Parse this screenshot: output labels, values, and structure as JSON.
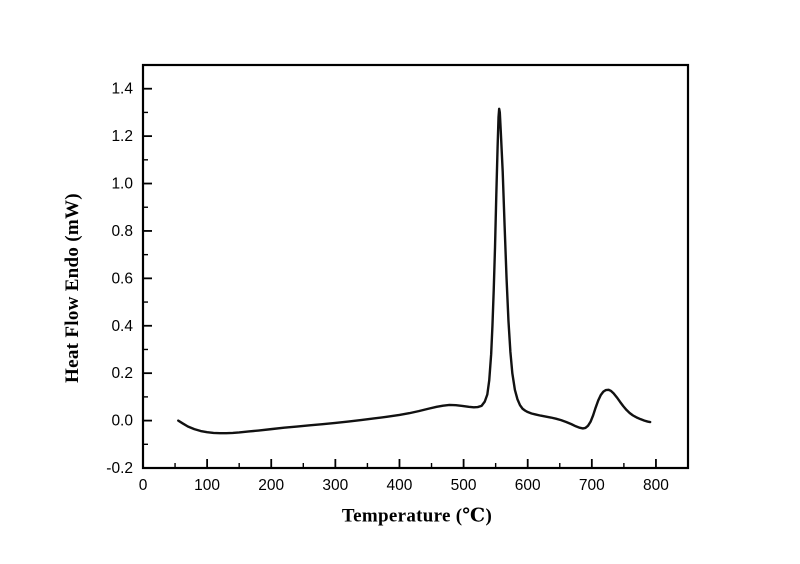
{
  "figure": {
    "background": "#ffffff"
  },
  "chart_data": {
    "type": "line",
    "title": "",
    "xlabel": "Temperature (℃)",
    "ylabel": "Heat Flow Endo (mW)",
    "xlim": [
      0,
      850
    ],
    "ylim": [
      -0.2,
      1.5
    ],
    "grid": false,
    "legend": "none",
    "axis_color": "#000000",
    "line_color": "#111111",
    "tick_label_color": "#000000",
    "xtick_values": [
      0,
      100,
      200,
      300,
      400,
      500,
      600,
      700,
      800
    ],
    "xtick_labels": [
      "0",
      "100",
      "200",
      "300",
      "400",
      "500",
      "600",
      "700",
      "800"
    ],
    "x_minor_step": 50,
    "ytick_values": [
      -0.2,
      0.0,
      0.2,
      0.4,
      0.6,
      0.8,
      1.0,
      1.2,
      1.4
    ],
    "ytick_labels": [
      "-0.2",
      "0.0",
      "0.2",
      "0.4",
      "0.6",
      "0.8",
      "1.0",
      "1.2",
      "1.4"
    ],
    "y_minor_step": 0.1,
    "series": [
      {
        "points": [
          [
            55,
            0.0
          ],
          [
            62,
            -0.012
          ],
          [
            70,
            -0.025
          ],
          [
            80,
            -0.036
          ],
          [
            90,
            -0.044
          ],
          [
            100,
            -0.049
          ],
          [
            110,
            -0.052
          ],
          [
            120,
            -0.053
          ],
          [
            130,
            -0.053
          ],
          [
            140,
            -0.052
          ],
          [
            150,
            -0.05
          ],
          [
            165,
            -0.046
          ],
          [
            180,
            -0.042
          ],
          [
            200,
            -0.036
          ],
          [
            220,
            -0.03
          ],
          [
            240,
            -0.025
          ],
          [
            260,
            -0.02
          ],
          [
            280,
            -0.015
          ],
          [
            300,
            -0.01
          ],
          [
            320,
            -0.004
          ],
          [
            340,
            0.002
          ],
          [
            360,
            0.009
          ],
          [
            380,
            0.016
          ],
          [
            400,
            0.024
          ],
          [
            415,
            0.031
          ],
          [
            430,
            0.04
          ],
          [
            445,
            0.05
          ],
          [
            458,
            0.058
          ],
          [
            468,
            0.063
          ],
          [
            478,
            0.066
          ],
          [
            488,
            0.065
          ],
          [
            498,
            0.062
          ],
          [
            508,
            0.058
          ],
          [
            516,
            0.056
          ],
          [
            522,
            0.057
          ],
          [
            528,
            0.062
          ],
          [
            533,
            0.08
          ],
          [
            537,
            0.11
          ],
          [
            540,
            0.17
          ],
          [
            543,
            0.28
          ],
          [
            545,
            0.4
          ],
          [
            547,
            0.55
          ],
          [
            549,
            0.73
          ],
          [
            551,
            0.95
          ],
          [
            553,
            1.15
          ],
          [
            554.5,
            1.28
          ],
          [
            555.5,
            1.315
          ],
          [
            556.5,
            1.3
          ],
          [
            558,
            1.22
          ],
          [
            561,
            1.05
          ],
          [
            564,
            0.82
          ],
          [
            567,
            0.6
          ],
          [
            570,
            0.42
          ],
          [
            573,
            0.29
          ],
          [
            576,
            0.2
          ],
          [
            580,
            0.13
          ],
          [
            584,
            0.09
          ],
          [
            588,
            0.065
          ],
          [
            592,
            0.05
          ],
          [
            596,
            0.042
          ],
          [
            600,
            0.036
          ],
          [
            606,
            0.03
          ],
          [
            612,
            0.026
          ],
          [
            620,
            0.021
          ],
          [
            628,
            0.017
          ],
          [
            636,
            0.013
          ],
          [
            644,
            0.008
          ],
          [
            652,
            0.002
          ],
          [
            660,
            -0.006
          ],
          [
            668,
            -0.015
          ],
          [
            675,
            -0.024
          ],
          [
            681,
            -0.03
          ],
          [
            686,
            -0.033
          ],
          [
            690,
            -0.031
          ],
          [
            694,
            -0.022
          ],
          [
            698,
            -0.005
          ],
          [
            702,
            0.022
          ],
          [
            706,
            0.055
          ],
          [
            710,
            0.085
          ],
          [
            714,
            0.108
          ],
          [
            718,
            0.122
          ],
          [
            722,
            0.129
          ],
          [
            726,
            0.13
          ],
          [
            730,
            0.125
          ],
          [
            734,
            0.115
          ],
          [
            739,
            0.098
          ],
          [
            744,
            0.079
          ],
          [
            749,
            0.061
          ],
          [
            754,
            0.045
          ],
          [
            759,
            0.032
          ],
          [
            764,
            0.022
          ],
          [
            770,
            0.013
          ],
          [
            776,
            0.006
          ],
          [
            782,
            0.0
          ],
          [
            787,
            -0.004
          ],
          [
            791,
            -0.006
          ]
        ]
      }
    ]
  }
}
